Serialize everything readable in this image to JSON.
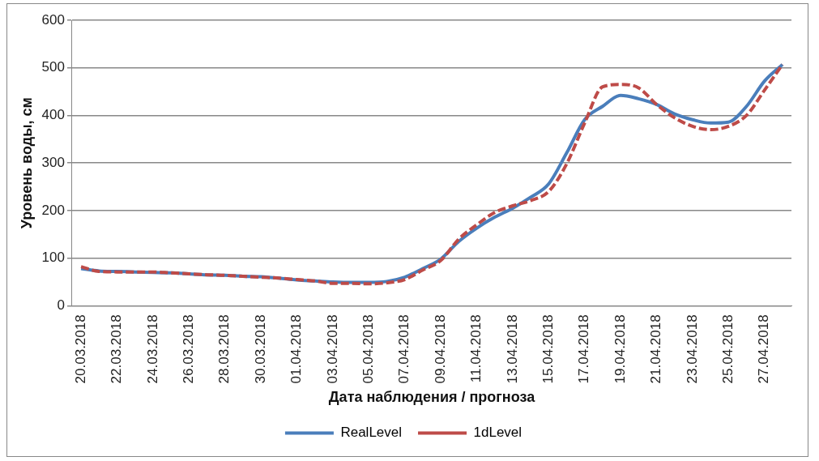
{
  "chart_data": {
    "type": "line",
    "xlabel": "Дата наблюдения / прогноза",
    "ylabel": "Уровень воды, см",
    "categories": [
      "20.03.2018",
      null,
      "22.03.2018",
      null,
      "24.03.2018",
      null,
      "26.03.2018",
      null,
      "28.03.2018",
      null,
      "30.03.2018",
      null,
      "01.04.2018",
      null,
      "03.04.2018",
      null,
      "05.04.2018",
      null,
      "07.04.2018",
      null,
      "09.04.2018",
      null,
      "11.04.2018",
      null,
      "13.04.2018",
      null,
      "15.04.2018",
      null,
      "17.04.2018",
      null,
      "19.04.2018",
      null,
      "21.04.2018",
      null,
      "23.04.2018",
      null,
      "25.04.2018",
      null,
      "27.04.2018",
      null
    ],
    "series": [
      {
        "name": "RealLevel",
        "color": "#4a7ebb",
        "line_style": "solid",
        "values": [
          78,
          73,
          72,
          71,
          70,
          69,
          67,
          65,
          64,
          62,
          61,
          58,
          54,
          52,
          50,
          49,
          49,
          51,
          60,
          78,
          98,
          135,
          163,
          186,
          205,
          228,
          256,
          321,
          391,
          419,
          442,
          435,
          423,
          403,
          391,
          384,
          386,
          419,
          472,
          507
        ]
      },
      {
        "name": "1dLevel",
        "color": "#be4b48",
        "line_style": "dashed",
        "values": [
          82,
          72,
          71,
          71,
          71,
          69,
          67,
          65,
          64,
          62,
          60,
          58,
          55,
          52,
          47,
          47,
          46,
          48,
          55,
          75,
          95,
          140,
          170,
          196,
          210,
          221,
          240,
          298,
          384,
          460,
          465,
          458,
          423,
          395,
          377,
          370,
          377,
          400,
          453,
          507
        ]
      }
    ],
    "ylim": [
      0,
      600
    ],
    "yticks": [
      0,
      100,
      200,
      300,
      400,
      500,
      600
    ],
    "grid": "y",
    "legend": "bottom",
    "marker": "none"
  }
}
